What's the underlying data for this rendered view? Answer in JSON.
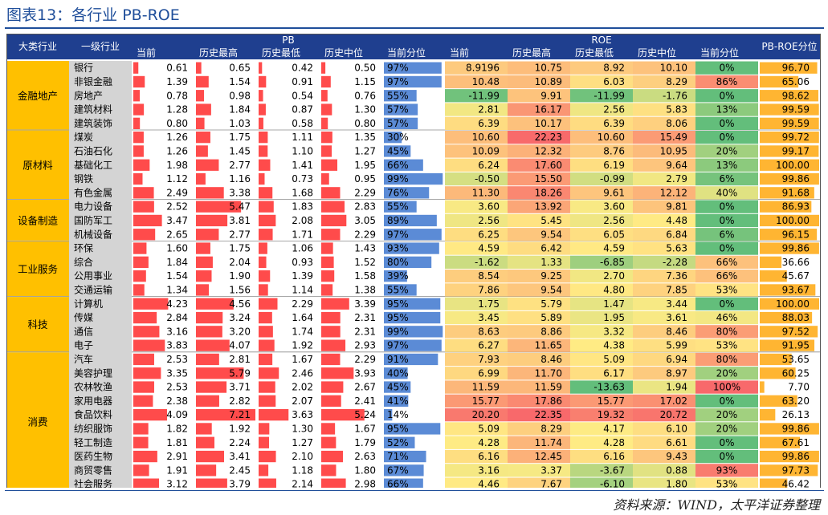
{
  "title": "图表13：各行业 PB-ROE",
  "source": "资料来源：WIND，太平洋证券整理",
  "chart_data": {
    "type": "table",
    "headers": {
      "major": "大类行业",
      "industry": "一级行业",
      "pb_group": "PB",
      "roe_group": "ROE",
      "pbroe": "PB-ROE分位",
      "sub": [
        "当前",
        "历史最高",
        "历史最低",
        "历史中位",
        "当前分位"
      ]
    },
    "groups": [
      {
        "name": "金融地产",
        "rows": 5
      },
      {
        "name": "原材料",
        "rows": 5
      },
      {
        "name": "设备制造",
        "rows": 3
      },
      {
        "name": "工业服务",
        "rows": 4
      },
      {
        "name": "科技",
        "rows": 4
      },
      {
        "name": "消费",
        "rows": 10
      }
    ],
    "rows": [
      {
        "name": "银行",
        "pb": [
          "0.61",
          "0.65",
          "0.42",
          "0.50"
        ],
        "pb_pct": "97%",
        "roe": [
          "8.9196",
          "10.75",
          "8.92",
          "10.10"
        ],
        "roe_pct": "0%",
        "pbroe": "96.70"
      },
      {
        "name": "非银金融",
        "pb": [
          "1.39",
          "1.54",
          "0.91",
          "1.15"
        ],
        "pb_pct": "97%",
        "roe": [
          "10.48",
          "10.89",
          "6.03",
          "8.29"
        ],
        "roe_pct": "86%",
        "pbroe": "65.06"
      },
      {
        "name": "房地产",
        "pb": [
          "0.78",
          "0.98",
          "0.54",
          "0.76"
        ],
        "pb_pct": "55%",
        "roe": [
          "-11.99",
          "9.91",
          "-11.99",
          "-1.76"
        ],
        "roe_pct": "0%",
        "pbroe": "98.62"
      },
      {
        "name": "建筑材料",
        "pb": [
          "1.28",
          "1.84",
          "0.87",
          "1.30"
        ],
        "pb_pct": "57%",
        "roe": [
          "2.81",
          "16.17",
          "2.56",
          "5.83"
        ],
        "roe_pct": "13%",
        "pbroe": "99.59"
      },
      {
        "name": "建筑装饰",
        "pb": [
          "0.80",
          "1.03",
          "0.58",
          "0.80"
        ],
        "pb_pct": "57%",
        "roe": [
          "6.39",
          "10.17",
          "6.39",
          "8.06"
        ],
        "roe_pct": "0%",
        "pbroe": "99.59"
      },
      {
        "name": "煤炭",
        "pb": [
          "1.26",
          "1.75",
          "1.11",
          "1.35"
        ],
        "pb_pct": "30%",
        "roe": [
          "10.60",
          "22.23",
          "10.60",
          "15.49"
        ],
        "roe_pct": "0%",
        "pbroe": "99.72"
      },
      {
        "name": "石油石化",
        "pb": [
          "1.26",
          "1.45",
          "1.10",
          "1.27"
        ],
        "pb_pct": "45%",
        "roe": [
          "10.09",
          "12.32",
          "8.76",
          "10.95"
        ],
        "roe_pct": "20%",
        "pbroe": "99.17"
      },
      {
        "name": "基础化工",
        "pb": [
          "1.98",
          "2.77",
          "1.41",
          "1.95"
        ],
        "pb_pct": "66%",
        "roe": [
          "6.24",
          "17.60",
          "6.19",
          "9.64"
        ],
        "roe_pct": "13%",
        "pbroe": "100.00"
      },
      {
        "name": "钢铁",
        "pb": [
          "1.12",
          "1.16",
          "0.73",
          "0.95"
        ],
        "pb_pct": "99%",
        "roe": [
          "-0.50",
          "15.50",
          "-0.99",
          "2.79"
        ],
        "roe_pct": "6%",
        "pbroe": "99.86"
      },
      {
        "name": "有色金属",
        "pb": [
          "2.49",
          "3.38",
          "1.68",
          "2.29"
        ],
        "pb_pct": "76%",
        "roe": [
          "11.30",
          "18.26",
          "9.61",
          "12.12"
        ],
        "roe_pct": "40%",
        "pbroe": "91.68"
      },
      {
        "name": "电力设备",
        "pb": [
          "2.52",
          "5.47",
          "1.83",
          "2.83"
        ],
        "pb_pct": "55%",
        "roe": [
          "3.60",
          "13.92",
          "3.60",
          "9.81"
        ],
        "roe_pct": "0%",
        "pbroe": "86.93"
      },
      {
        "name": "国防军工",
        "pb": [
          "3.47",
          "3.81",
          "2.08",
          "3.05"
        ],
        "pb_pct": "89%",
        "roe": [
          "2.56",
          "5.45",
          "2.56",
          "4.48"
        ],
        "roe_pct": "0%",
        "pbroe": "100.00"
      },
      {
        "name": "机械设备",
        "pb": [
          "2.65",
          "2.77",
          "1.71",
          "2.29"
        ],
        "pb_pct": "97%",
        "roe": [
          "6.25",
          "9.54",
          "6.05",
          "6.84"
        ],
        "roe_pct": "6%",
        "pbroe": "96.15"
      },
      {
        "name": "环保",
        "pb": [
          "1.60",
          "1.75",
          "1.06",
          "1.43"
        ],
        "pb_pct": "93%",
        "roe": [
          "4.59",
          "6.42",
          "4.59",
          "5.63"
        ],
        "roe_pct": "0%",
        "pbroe": "99.86"
      },
      {
        "name": "综合",
        "pb": [
          "1.84",
          "2.04",
          "0.93",
          "1.52"
        ],
        "pb_pct": "80%",
        "roe": [
          "-1.62",
          "1.33",
          "-6.85",
          "-2.28"
        ],
        "roe_pct": "66%",
        "pbroe": "36.66"
      },
      {
        "name": "公用事业",
        "pb": [
          "1.54",
          "1.90",
          "1.39",
          "1.58"
        ],
        "pb_pct": "39%",
        "roe": [
          "8.54",
          "9.25",
          "2.70",
          "7.36"
        ],
        "roe_pct": "66%",
        "pbroe": "45.67"
      },
      {
        "name": "交通运输",
        "pb": [
          "1.34",
          "1.56",
          "1.14",
          "1.38"
        ],
        "pb_pct": "55%",
        "roe": [
          "7.86",
          "9.54",
          "4.80",
          "7.85"
        ],
        "roe_pct": "53%",
        "pbroe": "93.67"
      },
      {
        "name": "计算机",
        "pb": [
          "4.23",
          "4.56",
          "2.29",
          "3.39"
        ],
        "pb_pct": "95%",
        "roe": [
          "1.75",
          "5.79",
          "1.47",
          "3.44"
        ],
        "roe_pct": "0%",
        "pbroe": "100.00"
      },
      {
        "name": "传媒",
        "pb": [
          "2.84",
          "3.24",
          "1.64",
          "2.31"
        ],
        "pb_pct": "95%",
        "roe": [
          "3.45",
          "5.89",
          "1.95",
          "3.61"
        ],
        "roe_pct": "46%",
        "pbroe": "88.03"
      },
      {
        "name": "通信",
        "pb": [
          "3.16",
          "3.20",
          "1.74",
          "2.31"
        ],
        "pb_pct": "99%",
        "roe": [
          "8.63",
          "8.86",
          "3.32",
          "8.46"
        ],
        "roe_pct": "80%",
        "pbroe": "97.52"
      },
      {
        "name": "电子",
        "pb": [
          "3.83",
          "4.07",
          "1.92",
          "2.93"
        ],
        "pb_pct": "97%",
        "roe": [
          "6.27",
          "11.65",
          "4.38",
          "5.99"
        ],
        "roe_pct": "53%",
        "pbroe": "91.95"
      },
      {
        "name": "汽车",
        "pb": [
          "2.53",
          "2.81",
          "1.67",
          "2.29"
        ],
        "pb_pct": "91%",
        "roe": [
          "7.93",
          "8.46",
          "5.09",
          "6.94"
        ],
        "roe_pct": "80%",
        "pbroe": "53.65"
      },
      {
        "name": "美容护理",
        "pb": [
          "3.35",
          "5.79",
          "2.46",
          "3.93"
        ],
        "pb_pct": "40%",
        "roe": [
          "6.99",
          "11.70",
          "6.17",
          "8.97"
        ],
        "roe_pct": "20%",
        "pbroe": "60.25"
      },
      {
        "name": "农林牧渔",
        "pb": [
          "2.53",
          "3.71",
          "2.02",
          "2.67"
        ],
        "pb_pct": "45%",
        "roe": [
          "11.59",
          "11.59",
          "-13.63",
          "1.94"
        ],
        "roe_pct": "100%",
        "pbroe": "7.70"
      },
      {
        "name": "家用电器",
        "pb": [
          "2.38",
          "2.82",
          "2.07",
          "2.41"
        ],
        "pb_pct": "41%",
        "roe": [
          "15.77",
          "17.86",
          "15.77",
          "17.02"
        ],
        "roe_pct": "0%",
        "pbroe": "63.20"
      },
      {
        "name": "食品饮料",
        "pb": [
          "4.09",
          "7.21",
          "3.63",
          "5.24"
        ],
        "pb_pct": "14%",
        "roe": [
          "20.20",
          "22.35",
          "19.32",
          "20.72"
        ],
        "roe_pct": "20%",
        "pbroe": "26.13"
      },
      {
        "name": "纺织服饰",
        "pb": [
          "1.82",
          "1.92",
          "1.30",
          "1.67"
        ],
        "pb_pct": "95%",
        "roe": [
          "5.09",
          "8.29",
          "4.17",
          "6.10"
        ],
        "roe_pct": "20%",
        "pbroe": "99.86"
      },
      {
        "name": "轻工制造",
        "pb": [
          "1.81",
          "2.24",
          "1.27",
          "1.79"
        ],
        "pb_pct": "52%",
        "roe": [
          "4.28",
          "11.74",
          "4.28",
          "6.61"
        ],
        "roe_pct": "0%",
        "pbroe": "67.61"
      },
      {
        "name": "医药生物",
        "pb": [
          "2.91",
          "3.41",
          "2.10",
          "2.63"
        ],
        "pb_pct": "71%",
        "roe": [
          "6.16",
          "12.45",
          "6.16",
          "9.43"
        ],
        "roe_pct": "0%",
        "pbroe": "99.86"
      },
      {
        "name": "商贸零售",
        "pb": [
          "1.91",
          "2.45",
          "1.18",
          "1.80"
        ],
        "pb_pct": "67%",
        "roe": [
          "3.16",
          "3.37",
          "-3.67",
          "0.88"
        ],
        "roe_pct": "93%",
        "pbroe": "97.73"
      },
      {
        "name": "社会服务",
        "pb": [
          "3.12",
          "3.79",
          "2.14",
          "2.98"
        ],
        "pb_pct": "66%",
        "roe": [
          "4.46",
          "7.67",
          "-6.10",
          "1.80"
        ],
        "roe_pct": "53%",
        "pbroe": "46.42"
      }
    ],
    "colors": {
      "header_bg": "#1f3f8f",
      "group_bg": "#ffc000",
      "name_bg": "#d4d4d4",
      "pb_bar": "#ff4b4b",
      "pb_pct_bar": "#5b8bd6",
      "pbroe_bar": "#ffb532",
      "roe_pct_low": "#63be7b",
      "roe_pct_high": "#f8696b",
      "roe_low": "#63be7b",
      "roe_mid": "#ffeb84",
      "roe_high": "#f8696b"
    }
  }
}
